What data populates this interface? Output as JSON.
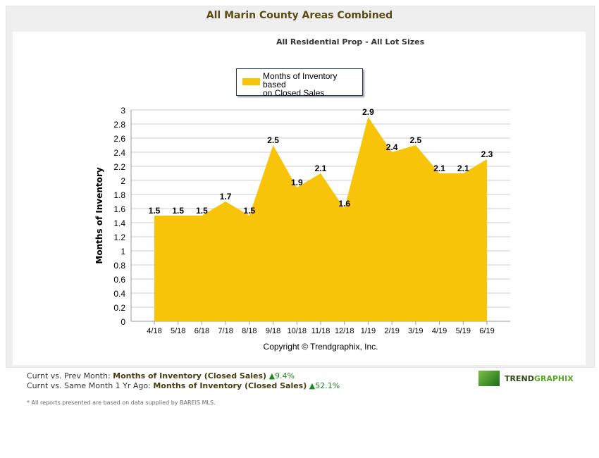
{
  "header": {
    "title": "All Marin County Areas Combined"
  },
  "chart_data": {
    "type": "area",
    "title": "All Residential Prop - All Lot Sizes",
    "ylabel": "Months of Inventory",
    "xlabel": "",
    "categories": [
      "4/18",
      "5/18",
      "6/18",
      "7/18",
      "8/18",
      "9/18",
      "10/18",
      "11/18",
      "12/18",
      "1/19",
      "2/19",
      "3/19",
      "4/19",
      "5/19",
      "6/19"
    ],
    "series": [
      {
        "name": "Months of Inventory based on Closed Sales",
        "values": [
          1.5,
          1.5,
          1.5,
          1.7,
          1.5,
          2.5,
          1.9,
          2.1,
          1.6,
          2.9,
          2.4,
          2.5,
          2.1,
          2.1,
          2.3
        ],
        "color": "#f7c40a"
      }
    ],
    "ylim": [
      0,
      3
    ],
    "yticks": [
      0,
      0.2,
      0.4,
      0.6,
      0.8,
      1,
      1.2,
      1.4,
      1.6,
      1.8,
      2,
      2.2,
      2.4,
      2.6,
      2.8,
      3
    ],
    "grid": true,
    "legend": "top-left",
    "annotation": "Copyright © Trendgraphix, Inc."
  },
  "legend_lines": [
    "Months of Inventory based",
    "on Closed Sales"
  ],
  "footer": {
    "row1_label": "Curnt vs. Prev Month: ",
    "row1_metric": "Months of Inventory (Closed Sales)",
    "row1_change": "9.4%",
    "row2_label": "Curnt vs. Same Month 1 Yr Ago: ",
    "row2_metric": "Months of Inventory (Closed Sales)",
    "row2_change": "52.1%",
    "note": "* All reports presented are based on data supplied by BAREIS MLS."
  },
  "logo": {
    "part1": "TREND",
    "part2": "GRAPHIX"
  }
}
